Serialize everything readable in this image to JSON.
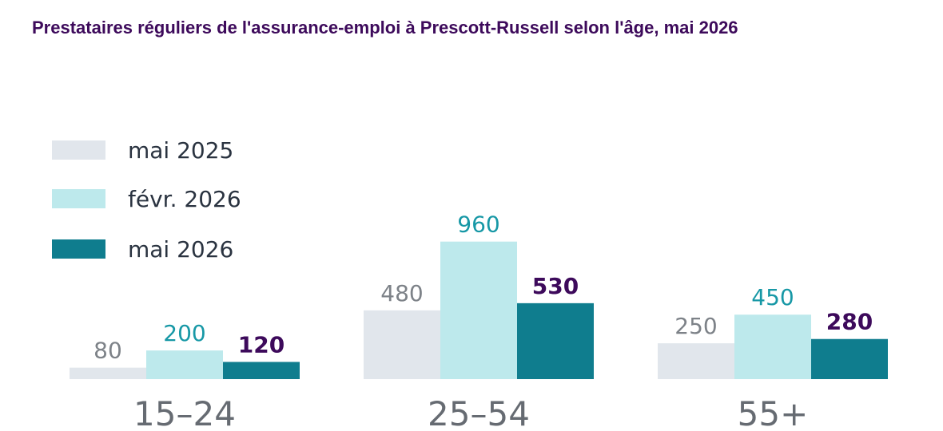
{
  "chart_data": {
    "type": "bar",
    "title": "Prestataires réguliers de l'assurance-emploi à Prescott-Russell selon l'âge, mai 2026",
    "xlabel": "",
    "ylabel": "",
    "categories": [
      "15–24",
      "25–54",
      "55+"
    ],
    "series": [
      {
        "name": "mai 2025",
        "values": [
          80,
          480,
          250
        ],
        "color": "#e1e6ec",
        "label_color": "#7d8288",
        "bold": false
      },
      {
        "name": "févr. 2026",
        "values": [
          200,
          960,
          450
        ],
        "color": "#bde9ec",
        "label_color": "#1798a6",
        "bold": false
      },
      {
        "name": "mai 2026",
        "values": [
          120,
          530,
          280
        ],
        "color": "#0f7d8e",
        "label_color": "#3d0a5b",
        "bold": true
      }
    ],
    "ylim": [
      0,
      1000
    ],
    "grid": false,
    "legend_position": "top-left"
  }
}
